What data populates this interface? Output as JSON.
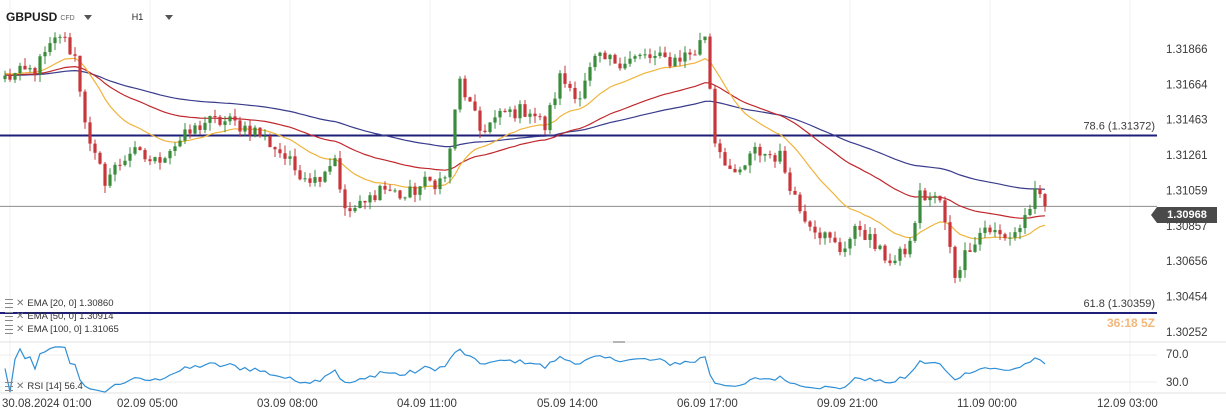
{
  "header": {
    "symbol": "GBPUSD",
    "instrument_type": "CFD",
    "timeframe": "H1"
  },
  "current_price": "1.30968",
  "fibonacci": [
    {
      "label": "78.6 (1.31372)",
      "price": 1.31372,
      "color": "#1f1f7a"
    },
    {
      "label": "61.8 (1.30359)",
      "price": 1.30359,
      "color": "#1f1f7a"
    }
  ],
  "watermark": "36:18 5Z",
  "indicators": [
    {
      "label": "EMA [20, 0] 1.30860",
      "color": "#f0b43c"
    },
    {
      "label": "EMA [50, 0] 1.30914",
      "color": "#c0282c"
    },
    {
      "label": "EMA [100, 0] 1.31065",
      "color": "#3a3c8c"
    }
  ],
  "rsi": {
    "label": "RSI [14] 56.4",
    "upper": 70.0,
    "lower": 30.0,
    "upper_label": "70.0",
    "lower_label": "30.0",
    "color": "#2f8fd6"
  },
  "chart_data": {
    "type": "candlestick",
    "y_ticks": [
      "1.31866",
      "1.31664",
      "1.31463",
      "1.31261",
      "1.31059",
      "1.30857",
      "1.30656",
      "1.30454",
      "1.30252"
    ],
    "y_tick_values": [
      1.31866,
      1.31664,
      1.31463,
      1.31261,
      1.31059,
      1.30857,
      1.30656,
      1.30454,
      1.30252
    ],
    "ylim": [
      1.30205,
      1.3206
    ],
    "x_ticks": [
      "30.08.2024 01:00",
      "02.09 05:00",
      "03.09 08:00",
      "04.09 11:00",
      "05.09 14:00",
      "06.09 17:00",
      "09.09 21:00",
      "11.09 00:00",
      "12.09 03:00"
    ],
    "x_tick_bars": [
      1,
      29,
      57,
      85,
      113,
      141,
      169,
      197,
      225
    ],
    "bar_count": 226,
    "anchors": [
      [
        0,
        1.317
      ],
      [
        6,
        1.3175
      ],
      [
        11,
        1.3195
      ],
      [
        14,
        1.3182
      ],
      [
        17,
        1.313
      ],
      [
        20,
        1.3112
      ],
      [
        25,
        1.3128
      ],
      [
        30,
        1.3122
      ],
      [
        33,
        1.313
      ],
      [
        40,
        1.3145
      ],
      [
        45,
        1.3145
      ],
      [
        50,
        1.314
      ],
      [
        55,
        1.3128
      ],
      [
        58,
        1.3118
      ],
      [
        62,
        1.3112
      ],
      [
        66,
        1.3125
      ],
      [
        68,
        1.3093
      ],
      [
        72,
        1.3098
      ],
      [
        75,
        1.3108
      ],
      [
        80,
        1.3102
      ],
      [
        84,
        1.311
      ],
      [
        88,
        1.3112
      ],
      [
        91,
        1.3168
      ],
      [
        95,
        1.314
      ],
      [
        100,
        1.315
      ],
      [
        105,
        1.3152
      ],
      [
        108,
        1.3142
      ],
      [
        111,
        1.317
      ],
      [
        115,
        1.316
      ],
      [
        118,
        1.318
      ],
      [
        123,
        1.318
      ],
      [
        128,
        1.3182
      ],
      [
        133,
        1.318
      ],
      [
        138,
        1.3185
      ],
      [
        140,
        1.3195
      ],
      [
        142,
        1.3135
      ],
      [
        146,
        1.3112
      ],
      [
        150,
        1.3128
      ],
      [
        155,
        1.3125
      ],
      [
        159,
        1.3095
      ],
      [
        163,
        1.3082
      ],
      [
        167,
        1.3072
      ],
      [
        171,
        1.3085
      ],
      [
        175,
        1.307
      ],
      [
        178,
        1.3065
      ],
      [
        181,
        1.3075
      ],
      [
        183,
        1.3103
      ],
      [
        187,
        1.31
      ],
      [
        190,
        1.3058
      ],
      [
        193,
        1.3075
      ],
      [
        196,
        1.3085
      ],
      [
        200,
        1.3078
      ],
      [
        203,
        1.3085
      ],
      [
        206,
        1.3103
      ],
      [
        208,
        1.30968
      ]
    ],
    "ema20_last": 1.3086,
    "ema50_last": 1.30914,
    "ema100_last": 1.31065,
    "up_color": "#3a8c3c",
    "down_color": "#c7363a"
  }
}
